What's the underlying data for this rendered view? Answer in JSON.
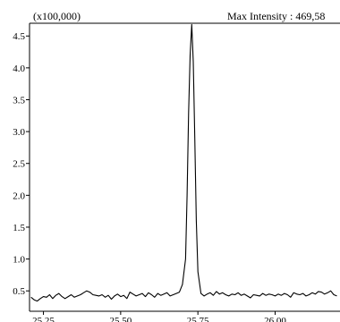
{
  "chart_data": {
    "type": "line",
    "multiplier_label": "(x100,000)",
    "max_intensity_label": "Max Intensity : 469,58",
    "xlabel": "",
    "ylabel": "",
    "xlim": [
      25.205,
      26.21
    ],
    "ylim": [
      0.18,
      4.7
    ],
    "x_ticks": [
      {
        "value": 25.25,
        "label": "25.25"
      },
      {
        "value": 25.5,
        "label": "25.50"
      },
      {
        "value": 25.75,
        "label": "25.75"
      },
      {
        "value": 26.0,
        "label": "26.00"
      }
    ],
    "y_ticks": [
      {
        "value": 0.5,
        "label": "0.5"
      },
      {
        "value": 1.0,
        "label": "1.0"
      },
      {
        "value": 1.5,
        "label": "1.5"
      },
      {
        "value": 2.0,
        "label": "2.0"
      },
      {
        "value": 2.5,
        "label": "2.5"
      },
      {
        "value": 3.0,
        "label": "3.0"
      },
      {
        "value": 3.5,
        "label": "3.5"
      },
      {
        "value": 4.0,
        "label": "4.0"
      },
      {
        "value": 4.5,
        "label": "4.5"
      }
    ],
    "grid": false,
    "series": [
      {
        "color": "#000000",
        "x": [
          25.21,
          25.22,
          25.23,
          25.24,
          25.25,
          25.26,
          25.27,
          25.28,
          25.29,
          25.3,
          25.31,
          25.32,
          25.33,
          25.34,
          25.35,
          25.36,
          25.37,
          25.38,
          25.39,
          25.4,
          25.41,
          25.42,
          25.43,
          25.44,
          25.45,
          25.46,
          25.47,
          25.48,
          25.49,
          25.5,
          25.51,
          25.52,
          25.53,
          25.54,
          25.55,
          25.56,
          25.57,
          25.58,
          25.59,
          25.6,
          25.61,
          25.62,
          25.63,
          25.64,
          25.65,
          25.66,
          25.67,
          25.68,
          25.69,
          25.7,
          25.71,
          25.715,
          25.72,
          25.725,
          25.73,
          25.735,
          25.74,
          25.745,
          25.75,
          25.76,
          25.77,
          25.78,
          25.79,
          25.8,
          25.81,
          25.82,
          25.83,
          25.84,
          25.85,
          25.86,
          25.87,
          25.88,
          25.89,
          25.9,
          25.91,
          25.92,
          25.93,
          25.94,
          25.95,
          25.96,
          25.97,
          25.98,
          25.99,
          26.0,
          26.01,
          26.02,
          26.03,
          26.04,
          26.05,
          26.06,
          26.07,
          26.08,
          26.09,
          26.1,
          26.11,
          26.12,
          26.13,
          26.14,
          26.15,
          26.16,
          26.17,
          26.18,
          26.19,
          26.2
        ],
        "y": [
          0.4,
          0.36,
          0.34,
          0.38,
          0.41,
          0.4,
          0.44,
          0.38,
          0.43,
          0.46,
          0.41,
          0.38,
          0.41,
          0.44,
          0.4,
          0.42,
          0.44,
          0.47,
          0.5,
          0.48,
          0.44,
          0.43,
          0.42,
          0.44,
          0.4,
          0.43,
          0.37,
          0.42,
          0.45,
          0.41,
          0.43,
          0.38,
          0.48,
          0.45,
          0.42,
          0.44,
          0.46,
          0.41,
          0.47,
          0.44,
          0.4,
          0.46,
          0.43,
          0.45,
          0.47,
          0.42,
          0.44,
          0.46,
          0.48,
          0.6,
          1.0,
          2.0,
          3.3,
          4.2,
          4.68,
          4.1,
          2.9,
          1.6,
          0.8,
          0.46,
          0.42,
          0.45,
          0.47,
          0.43,
          0.49,
          0.45,
          0.47,
          0.44,
          0.42,
          0.45,
          0.44,
          0.47,
          0.43,
          0.45,
          0.42,
          0.39,
          0.44,
          0.43,
          0.42,
          0.46,
          0.43,
          0.45,
          0.44,
          0.42,
          0.45,
          0.43,
          0.46,
          0.44,
          0.4,
          0.47,
          0.45,
          0.44,
          0.46,
          0.42,
          0.44,
          0.47,
          0.45,
          0.49,
          0.48,
          0.45,
          0.47,
          0.5,
          0.44,
          0.42
        ]
      }
    ]
  }
}
